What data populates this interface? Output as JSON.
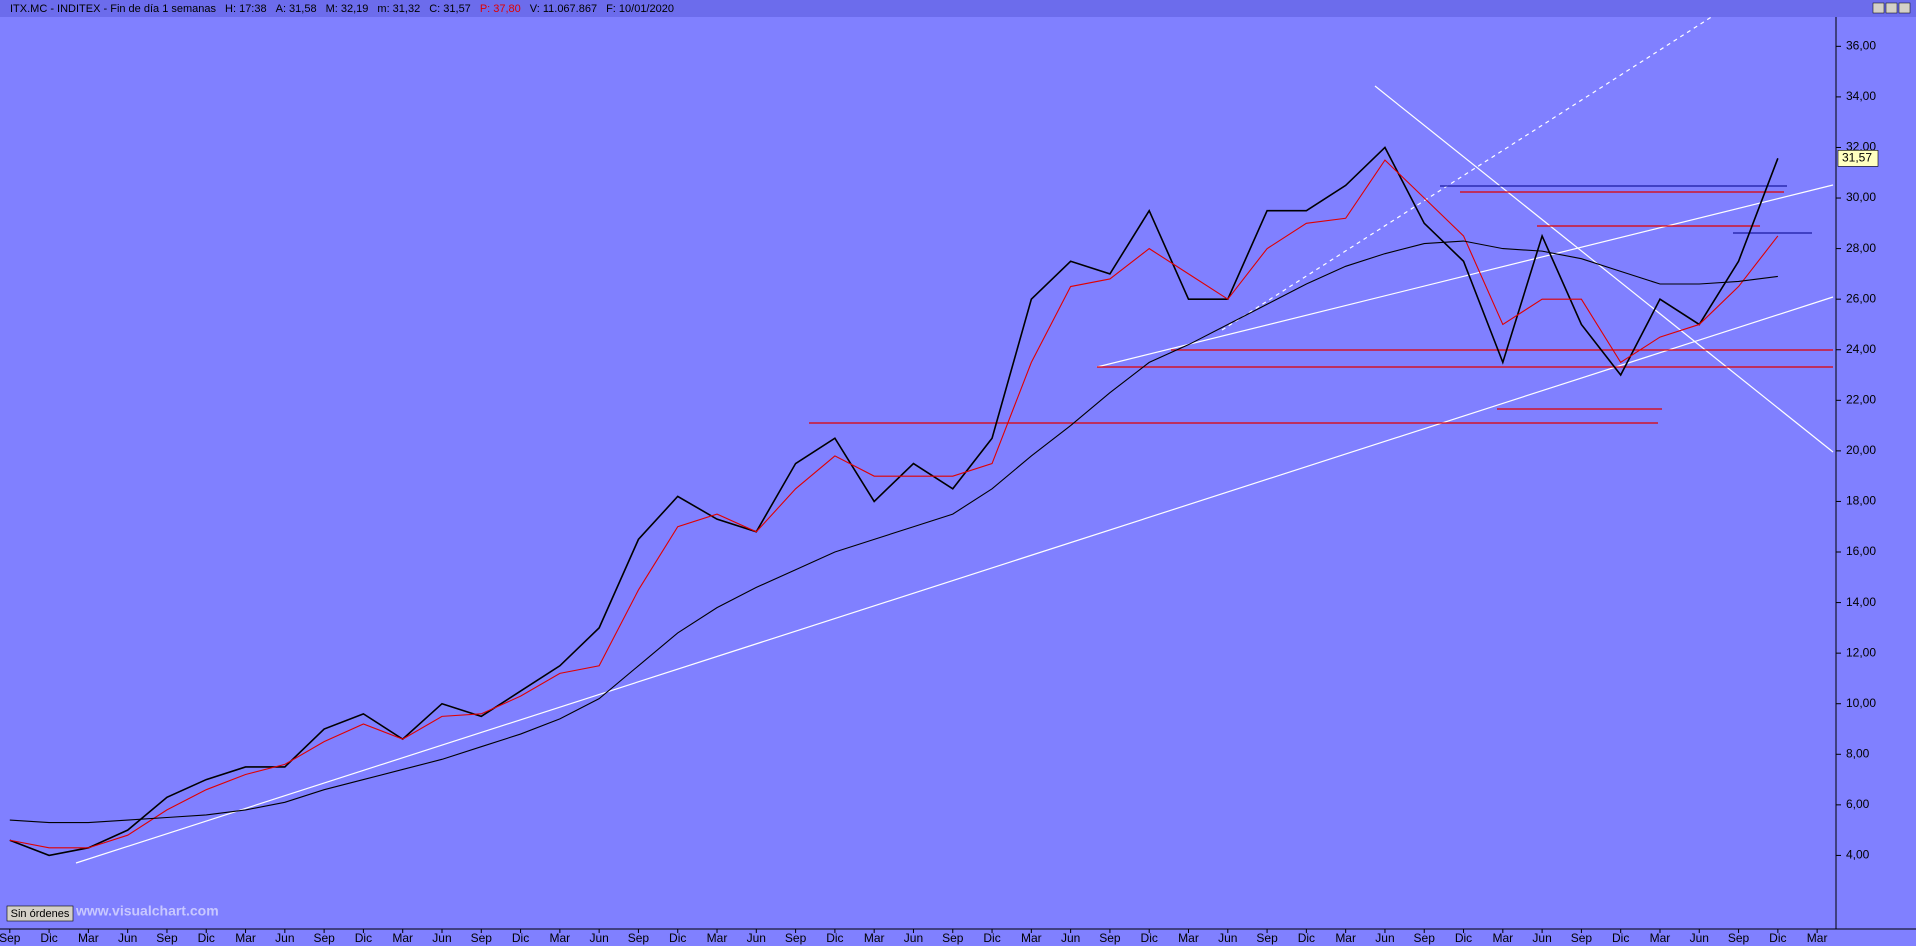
{
  "header": {
    "items": [
      "ITX.MC - INDITEX - Fin de día 1 semanas",
      "H: 17:38",
      "A: 31,58",
      "M: 32,19",
      "m: 31,32",
      "C: 31,57",
      "P: 37,80",
      "V: 11.067.867",
      "F: 10/01/2020"
    ]
  },
  "footer": {
    "button": "Sin órdenes",
    "watermark": "www.visualchart.com"
  },
  "chart_data": {
    "type": "line",
    "categories": [
      "Sep",
      "Dic",
      "Mar",
      "Jun",
      "Sep",
      "Dic",
      "Mar",
      "Jun",
      "Sep",
      "Dic",
      "Mar",
      "Jun",
      "Sep",
      "Dic",
      "Mar",
      "Jun",
      "Sep",
      "Dic",
      "Mar",
      "Jun",
      "Sep",
      "Dic",
      "Mar",
      "Jun",
      "Sep",
      "Dic",
      "Mar",
      "Jun",
      "Sep",
      "Dic",
      "Mar",
      "Jun",
      "Sep",
      "Dic",
      "Mar",
      "Jun",
      "Sep",
      "Dic",
      "Mar",
      "Jun",
      "Sep",
      "Dic",
      "Mar",
      "Jun",
      "Sep",
      "Dic",
      "Mar"
    ],
    "series": [
      {
        "color": "#000000",
        "values": [
          4.6,
          4.0,
          4.3,
          5.0,
          6.3,
          7.0,
          7.5,
          7.5,
          9.0,
          9.6,
          8.6,
          10.0,
          9.5,
          10.5,
          11.5,
          13.0,
          16.5,
          18.2,
          17.3,
          16.8,
          19.5,
          20.5,
          18.0,
          19.5,
          18.5,
          20.5,
          26.0,
          27.5,
          27.0,
          29.5,
          26.0,
          26.0,
          29.5,
          29.5,
          30.5,
          32.0,
          29.0,
          27.5,
          23.5,
          28.5,
          25.0,
          23.0,
          26.0,
          25.0,
          27.5,
          31.57,
          null
        ],
        "value_labels": [
          null,
          null,
          null,
          null,
          null,
          null,
          null,
          null,
          null,
          null,
          null,
          null,
          null,
          null,
          null,
          null,
          null,
          null,
          null,
          null,
          null,
          null,
          null,
          null,
          null,
          null,
          null,
          null,
          null,
          null,
          null,
          null,
          null,
          null,
          null,
          null,
          null,
          null,
          null,
          null,
          null,
          null,
          null,
          null,
          null,
          "31,57",
          null
        ]
      },
      {
        "color": "#e00000",
        "values": [
          4.6,
          4.3,
          4.3,
          4.8,
          5.8,
          6.6,
          7.2,
          7.6,
          8.5,
          9.2,
          8.6,
          9.5,
          9.6,
          10.3,
          11.2,
          11.5,
          14.5,
          17.0,
          17.5,
          16.8,
          18.5,
          19.8,
          19.0,
          19.0,
          19.0,
          19.5,
          23.5,
          26.5,
          26.8,
          28.0,
          27.0,
          26.0,
          28.0,
          29.0,
          29.2,
          31.5,
          30.0,
          28.5,
          25.0,
          26.0,
          26.0,
          23.5,
          24.5,
          25.0,
          26.5,
          28.5,
          null
        ]
      },
      {
        "color": "#000000",
        "values": [
          5.4,
          5.3,
          5.3,
          5.4,
          5.5,
          5.6,
          5.8,
          6.1,
          6.6,
          7.0,
          7.4,
          7.8,
          8.3,
          8.8,
          9.4,
          10.2,
          11.5,
          12.8,
          13.8,
          14.6,
          15.3,
          16.0,
          16.5,
          17.0,
          17.5,
          18.5,
          19.8,
          21.0,
          22.3,
          23.5,
          24.2,
          25.0,
          25.8,
          26.6,
          27.3,
          27.8,
          28.2,
          28.3,
          28.0,
          27.9,
          27.6,
          27.1,
          26.6,
          26.6,
          26.7,
          26.9,
          null
        ]
      }
    ],
    "ylim": [
      1.09,
      37.16
    ],
    "yticks": [
      {
        "value": 4,
        "label": "4,00"
      },
      {
        "value": 6,
        "label": "6,00"
      },
      {
        "value": 8,
        "label": "8,00"
      },
      {
        "value": 10,
        "label": "10,00"
      },
      {
        "value": 12,
        "label": "12,00"
      },
      {
        "value": 14,
        "label": "14,00"
      },
      {
        "value": 16,
        "label": "16,00"
      },
      {
        "value": 18,
        "label": "18,00"
      },
      {
        "value": 20,
        "label": "20,00"
      },
      {
        "value": 22,
        "label": "22,00"
      },
      {
        "value": 24,
        "label": "24,00"
      },
      {
        "value": 26,
        "label": "26,00"
      },
      {
        "value": 28,
        "label": "28,00"
      },
      {
        "value": 30,
        "label": "30,00"
      },
      {
        "value": 32,
        "label": "32,00"
      },
      {
        "value": 34,
        "label": "34,00"
      },
      {
        "value": 36,
        "label": "36,00"
      }
    ],
    "grid": false
  }
}
